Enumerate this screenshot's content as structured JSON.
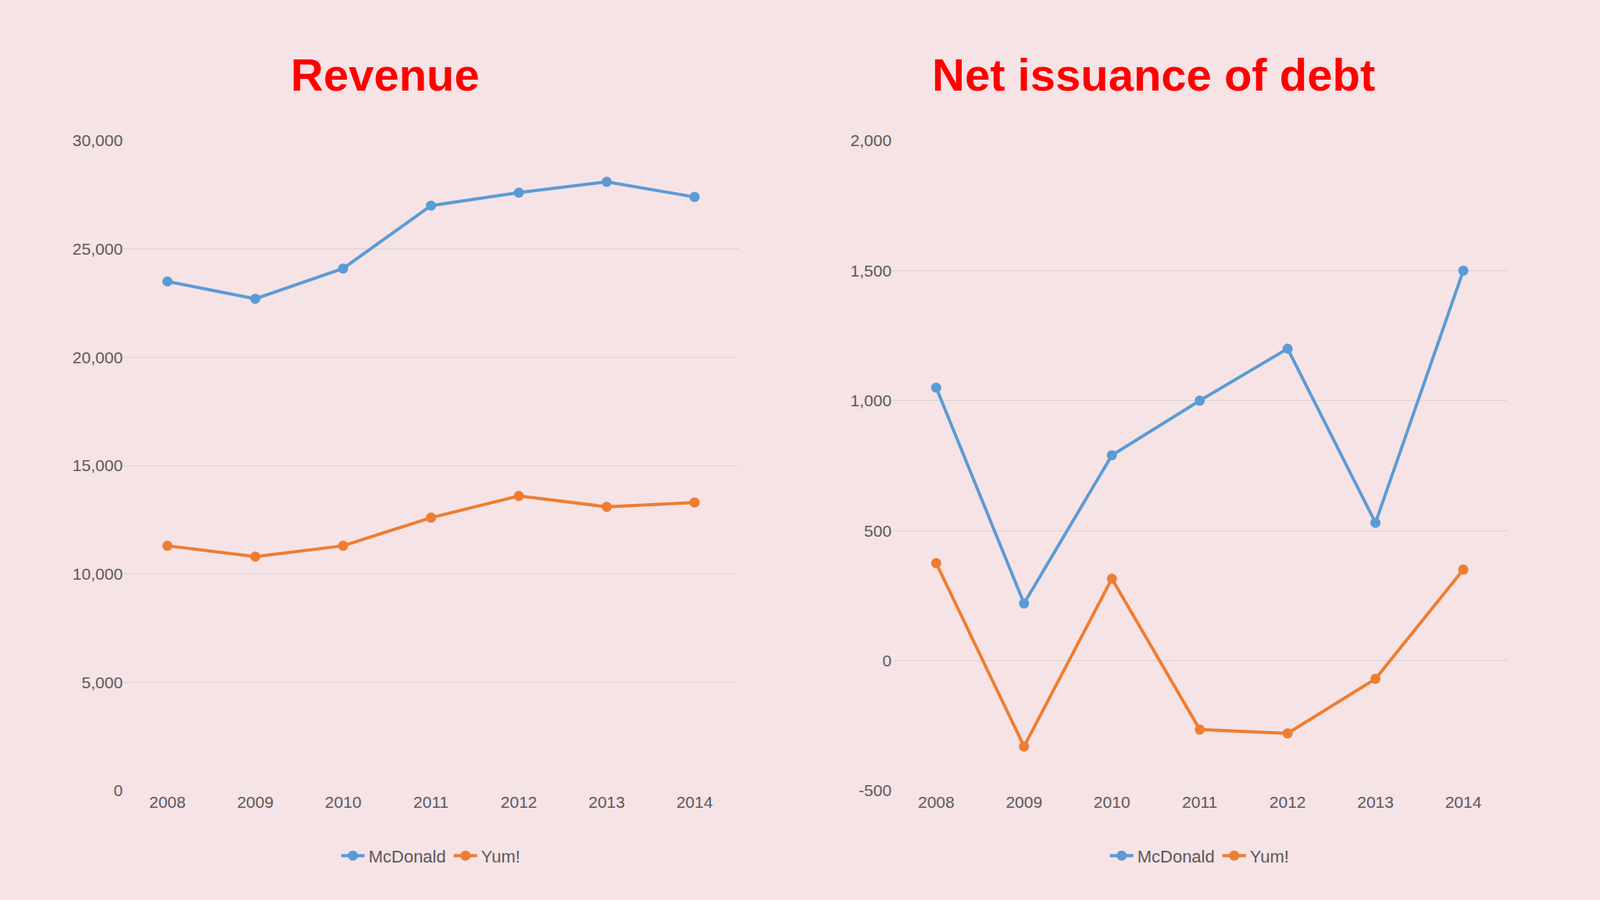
{
  "chart_data": [
    {
      "type": "line",
      "title": "Revenue",
      "categories": [
        "2008",
        "2009",
        "2010",
        "2011",
        "2012",
        "2013",
        "2014"
      ],
      "series": [
        {
          "name": "McDonald",
          "color": "#5b9bd5",
          "values": [
            23500,
            22700,
            24100,
            27000,
            27600,
            28100,
            27400
          ]
        },
        {
          "name": "Yum!",
          "color": "#ed7d31",
          "values": [
            11300,
            10800,
            11300,
            12600,
            13600,
            13100,
            13300
          ]
        }
      ],
      "ylim": [
        0,
        30000
      ],
      "yticks": [
        0,
        {
          "value": 5000,
          "label": "5,000"
        },
        {
          "value": 10000,
          "label": "10,000"
        },
        {
          "value": 15000,
          "label": "15,000"
        },
        {
          "value": 20000,
          "label": "20,000"
        },
        {
          "value": 25000,
          "label": "25,000"
        },
        {
          "value": 30000,
          "label": "30,000"
        }
      ],
      "grid": true,
      "legend": "bottom",
      "marker": "circle",
      "line_style": "solid"
    },
    {
      "type": "line",
      "title": "Net issuance of debt",
      "categories": [
        "2008",
        "2009",
        "2010",
        "2011",
        "2012",
        "2013",
        "2014"
      ],
      "series": [
        {
          "name": "McDonald",
          "color": "#5b9bd5",
          "values": [
            1050,
            220,
            790,
            1000,
            1200,
            530,
            1500
          ]
        },
        {
          "name": "Yum!",
          "color": "#ed7d31",
          "values": [
            375,
            -330,
            315,
            -265,
            -280,
            -70,
            350
          ]
        }
      ],
      "ylim": [
        -500,
        2000
      ],
      "yticks": [
        -500,
        0,
        500,
        {
          "value": 1000,
          "label": "1,000"
        },
        {
          "value": 1500,
          "label": "1,500"
        },
        {
          "value": 2000,
          "label": "2,000"
        }
      ],
      "grid": true,
      "legend": "bottom",
      "marker": "circle",
      "line_style": "solid"
    }
  ]
}
